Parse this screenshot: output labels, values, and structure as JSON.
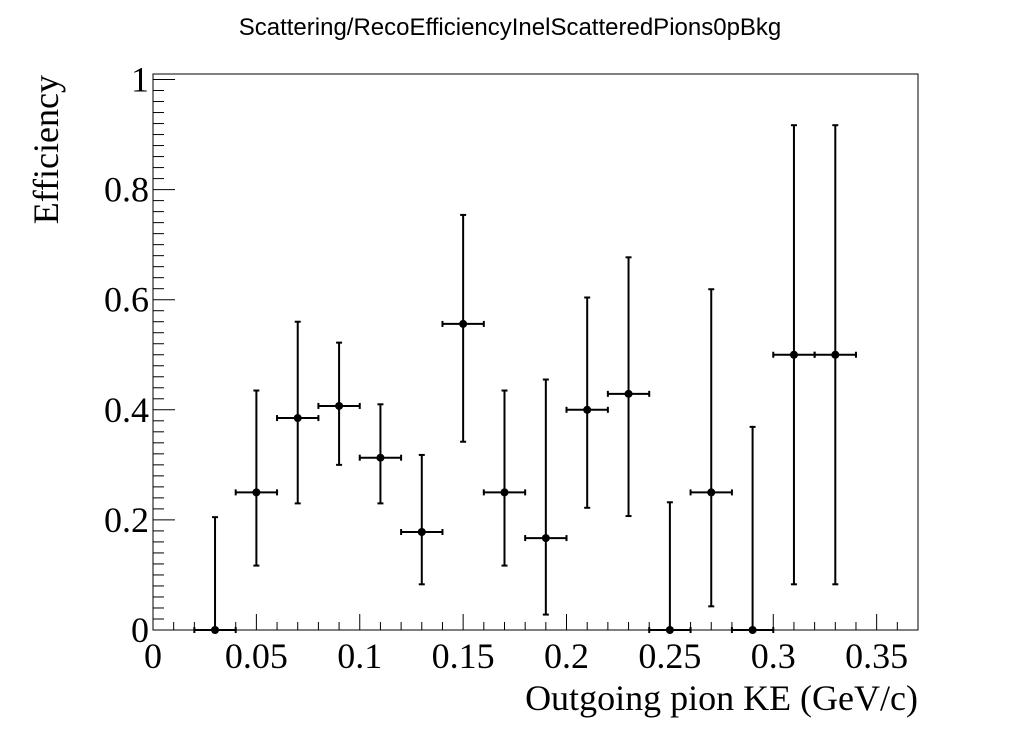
{
  "chart_data": {
    "type": "scatter",
    "title": "Scattering/RecoEfficiencyInelScatteredPions0pBkg",
    "xlabel": "Outgoing pion KE (GeV/c)",
    "ylabel": "Efficiency",
    "xlim": [
      0,
      0.37
    ],
    "ylim": [
      0,
      1.01
    ],
    "x_ticks": [
      0,
      0.05,
      0.1,
      0.15,
      0.2,
      0.25,
      0.3,
      0.35
    ],
    "x_tick_labels": [
      "0",
      "0.05",
      "0.1",
      "0.15",
      "0.2",
      "0.25",
      "0.3",
      "0.35"
    ],
    "y_ticks": [
      0,
      0.2,
      0.4,
      0.6,
      0.8,
      1
    ],
    "y_tick_labels": [
      "0",
      "0.2",
      "0.4",
      "0.6",
      "0.8",
      "1"
    ],
    "grid": false,
    "marker_color": "#000000",
    "series": [
      {
        "points": [
          {
            "x": 0.03,
            "xerr": 0.01,
            "y": 0.0,
            "ylow": 0.0,
            "yhigh": 0.205
          },
          {
            "x": 0.05,
            "xerr": 0.01,
            "y": 0.25,
            "ylow": 0.117,
            "yhigh": 0.435
          },
          {
            "x": 0.07,
            "xerr": 0.01,
            "y": 0.385,
            "ylow": 0.23,
            "yhigh": 0.56
          },
          {
            "x": 0.09,
            "xerr": 0.01,
            "y": 0.407,
            "ylow": 0.3,
            "yhigh": 0.522
          },
          {
            "x": 0.11,
            "xerr": 0.01,
            "y": 0.313,
            "ylow": 0.23,
            "yhigh": 0.41
          },
          {
            "x": 0.13,
            "xerr": 0.01,
            "y": 0.178,
            "ylow": 0.083,
            "yhigh": 0.318
          },
          {
            "x": 0.15,
            "xerr": 0.01,
            "y": 0.556,
            "ylow": 0.342,
            "yhigh": 0.754
          },
          {
            "x": 0.17,
            "xerr": 0.01,
            "y": 0.25,
            "ylow": 0.117,
            "yhigh": 0.435
          },
          {
            "x": 0.19,
            "xerr": 0.01,
            "y": 0.167,
            "ylow": 0.028,
            "yhigh": 0.455
          },
          {
            "x": 0.21,
            "xerr": 0.01,
            "y": 0.4,
            "ylow": 0.222,
            "yhigh": 0.604
          },
          {
            "x": 0.23,
            "xerr": 0.01,
            "y": 0.429,
            "ylow": 0.207,
            "yhigh": 0.677
          },
          {
            "x": 0.25,
            "xerr": 0.01,
            "y": 0.0,
            "ylow": 0.0,
            "yhigh": 0.232
          },
          {
            "x": 0.27,
            "xerr": 0.01,
            "y": 0.25,
            "ylow": 0.043,
            "yhigh": 0.619
          },
          {
            "x": 0.29,
            "xerr": 0.01,
            "y": 0.0,
            "ylow": 0.0,
            "yhigh": 0.369
          },
          {
            "x": 0.31,
            "xerr": 0.01,
            "y": 0.5,
            "ylow": 0.083,
            "yhigh": 0.917
          },
          {
            "x": 0.33,
            "xerr": 0.01,
            "y": 0.5,
            "ylow": 0.083,
            "yhigh": 0.917
          }
        ]
      }
    ]
  }
}
